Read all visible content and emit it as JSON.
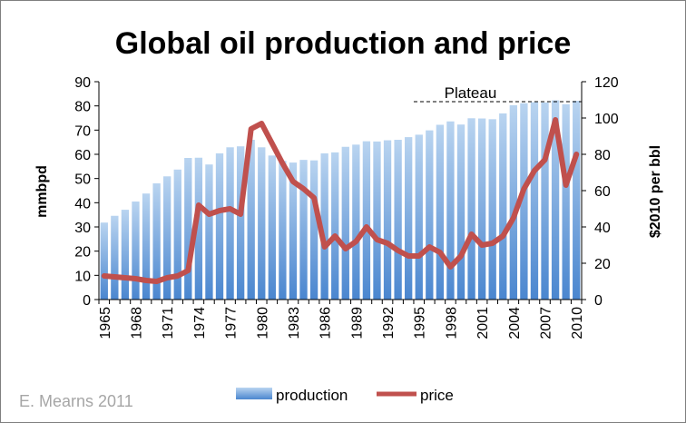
{
  "chart_data": {
    "type": "bar+line",
    "title": "Global oil production and price",
    "credit": "E. Mearns 2011",
    "years": [
      1965,
      1966,
      1967,
      1968,
      1969,
      1970,
      1971,
      1972,
      1973,
      1974,
      1975,
      1976,
      1977,
      1978,
      1979,
      1980,
      1981,
      1982,
      1983,
      1984,
      1985,
      1986,
      1987,
      1988,
      1989,
      1990,
      1991,
      1992,
      1993,
      1994,
      1995,
      1996,
      1997,
      1998,
      1999,
      2000,
      2001,
      2002,
      2003,
      2004,
      2005,
      2006,
      2007,
      2008,
      2009,
      2010
    ],
    "x_tick_labels": [
      "1965",
      "1968",
      "1971",
      "1974",
      "1977",
      "1980",
      "1983",
      "1986",
      "1989",
      "1992",
      "1995",
      "1998",
      "2001",
      "2004",
      "2007",
      "2010"
    ],
    "series": [
      {
        "name": "production",
        "type": "bar",
        "axis": "left",
        "color": "#5b9bd5",
        "values": [
          31.8,
          34.6,
          37.1,
          40.5,
          43.8,
          48.0,
          50.9,
          53.7,
          58.5,
          58.6,
          55.8,
          60.4,
          62.9,
          63.3,
          66.0,
          62.9,
          59.5,
          57.3,
          56.6,
          57.7,
          57.5,
          60.4,
          60.8,
          63.1,
          64.0,
          65.4,
          65.3,
          65.8,
          66.0,
          67.1,
          68.1,
          69.9,
          72.2,
          73.6,
          72.3,
          74.9,
          74.8,
          74.5,
          76.9,
          80.3,
          81.1,
          81.5,
          81.4,
          82.3,
          80.7,
          82.1
        ]
      },
      {
        "name": "price",
        "type": "line",
        "axis": "right",
        "color": "#c0504d",
        "values": [
          13,
          12.5,
          12,
          11.5,
          10.5,
          10,
          12,
          13,
          16,
          52,
          47,
          49,
          50,
          47,
          94,
          97,
          86,
          75,
          65,
          61,
          56,
          29,
          35,
          28,
          32,
          40,
          33,
          31,
          27,
          24,
          24,
          29,
          26,
          18,
          24,
          36,
          30,
          31,
          35,
          45,
          61,
          71,
          77,
          99,
          63,
          80
        ]
      }
    ],
    "left_axis": {
      "label": "mmbpd",
      "min": 0,
      "max": 90,
      "step": 10,
      "ticks": [
        "0",
        "10",
        "20",
        "30",
        "40",
        "50",
        "60",
        "70",
        "80",
        "90"
      ]
    },
    "right_axis": {
      "label": "$2010 per bbl",
      "min": 0,
      "max": 120,
      "step": 20,
      "ticks": [
        "0",
        "20",
        "40",
        "60",
        "80",
        "100",
        "120"
      ]
    },
    "annotation": {
      "text": "Plateau",
      "from_year": 1995,
      "to_year": 2010,
      "level": 81
    },
    "legend": {
      "placement": "bottom",
      "items": [
        "production",
        "price"
      ]
    },
    "grid": false
  }
}
